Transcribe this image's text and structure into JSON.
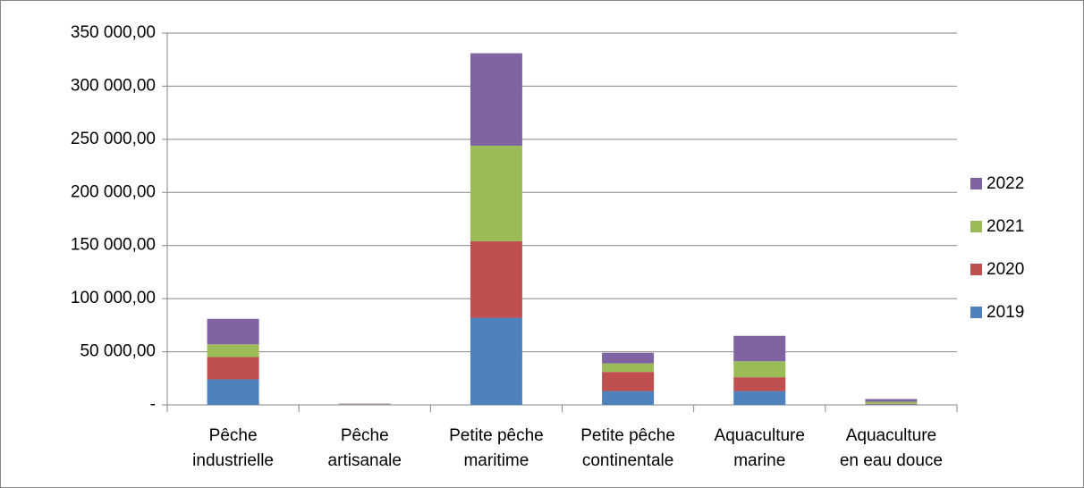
{
  "chart_data": {
    "type": "stacked_bar",
    "categories": [
      [
        "Pêche",
        "industrielle"
      ],
      [
        "Pêche",
        "artisanale"
      ],
      [
        "Petite pêche",
        "maritime"
      ],
      [
        "Petite pêche",
        "continentale"
      ],
      [
        "Aquaculture",
        "marine"
      ],
      [
        "Aquaculture",
        "en eau douce"
      ]
    ],
    "series": [
      {
        "name": "2019",
        "color": "#4f81bd",
        "values": [
          24000,
          300,
          82000,
          13000,
          13000,
          500
        ]
      },
      {
        "name": "2020",
        "color": "#c0504d",
        "values": [
          21000,
          300,
          72000,
          18000,
          13000,
          500
        ]
      },
      {
        "name": "2021",
        "color": "#9bbb59",
        "values": [
          12000,
          300,
          90000,
          8000,
          15000,
          2000
        ]
      },
      {
        "name": "2022",
        "color": "#8064a2",
        "values": [
          24000,
          300,
          87000,
          10000,
          24000,
          2500
        ]
      }
    ],
    "ylim": [
      0,
      350000
    ],
    "yticks": [
      {
        "value": 0,
        "label": "-"
      },
      {
        "value": 50000,
        "label": "50 000,00"
      },
      {
        "value": 100000,
        "label": "100 000,00"
      },
      {
        "value": 150000,
        "label": "150 000,00"
      },
      {
        "value": 200000,
        "label": "200 000,00"
      },
      {
        "value": 250000,
        "label": "250 000,00"
      },
      {
        "value": 300000,
        "label": "300 000,00"
      },
      {
        "value": 350000,
        "label": "350 000,00"
      }
    ],
    "grid": true,
    "legend": "right"
  }
}
